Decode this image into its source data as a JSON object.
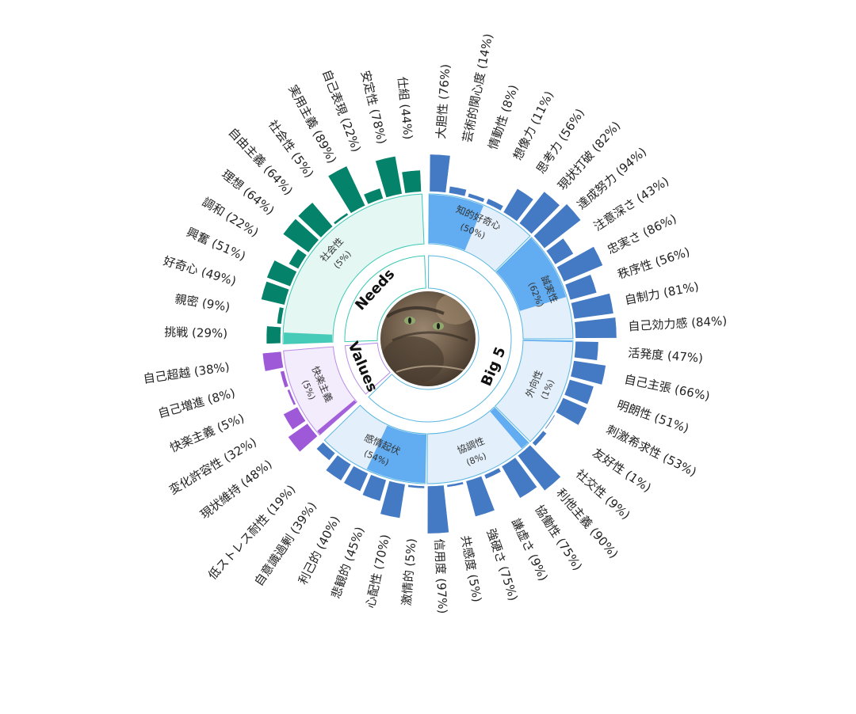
{
  "colors": {
    "big5": "#4479c4",
    "big5_light": "#e3f0fb",
    "big5_mid": "#5ba8f0",
    "big5_stroke": "#58b5e0",
    "needs": "#05826a",
    "needs_light": "#e4f7f2",
    "needs_mid": "#3cc8b4",
    "needs_stroke": "#3cc8b4",
    "values": "#9e59d9",
    "values_light": "#f3ecfc",
    "values_stroke": "#b98be6",
    "avatar_bg": "#7d6a55"
  },
  "chart_data": {
    "type": "sunburst",
    "title": "",
    "center_image": "cat-avatar",
    "groups": [
      {
        "name": "Big 5",
        "key": "big5",
        "categories": [
          {
            "name": "知的好奇心",
            "value": 50,
            "facets": [
              {
                "name": "大胆性",
                "value": 76
              },
              {
                "name": "芸術的関心度",
                "value": 14
              },
              {
                "name": "情動性",
                "value": 8
              },
              {
                "name": "想像力",
                "value": 11
              },
              {
                "name": "思考力",
                "value": 56
              },
              {
                "name": "現状打破",
                "value": 82
              }
            ]
          },
          {
            "name": "誠実性",
            "value": 62,
            "facets": [
              {
                "name": "達成努力",
                "value": 94
              },
              {
                "name": "注意深さ",
                "value": 43
              },
              {
                "name": "忠実さ",
                "value": 86
              },
              {
                "name": "秩序性",
                "value": 56
              },
              {
                "name": "自制力",
                "value": 81
              },
              {
                "name": "自己効力感",
                "value": 84
              }
            ]
          },
          {
            "name": "外向性",
            "value": 1,
            "facets": [
              {
                "name": "活発度",
                "value": 47
              },
              {
                "name": "自己主張",
                "value": 66
              },
              {
                "name": "明朗性",
                "value": 51
              },
              {
                "name": "刺激希求性",
                "value": 53
              },
              {
                "name": "友好性",
                "value": 1
              },
              {
                "name": "社交性",
                "value": 9
              }
            ]
          },
          {
            "name": "協調性",
            "value": 8,
            "facets": [
              {
                "name": "利他主義",
                "value": 90
              },
              {
                "name": "協働性",
                "value": 75
              },
              {
                "name": "謙虚さ",
                "value": 9
              },
              {
                "name": "強硬さ",
                "value": 75
              },
              {
                "name": "共感度",
                "value": 5
              },
              {
                "name": "信用度",
                "value": 97
              }
            ]
          },
          {
            "name": "感情起伏",
            "value": 54,
            "facets": [
              {
                "name": "激情的",
                "value": 5
              },
              {
                "name": "心配性",
                "value": 70
              },
              {
                "name": "悲観的",
                "value": 45
              },
              {
                "name": "利己的",
                "value": 40
              },
              {
                "name": "自意識過剰",
                "value": 39
              },
              {
                "name": "低ストレス耐性",
                "value": 19
              }
            ]
          }
        ]
      },
      {
        "name": "Values",
        "key": "values",
        "categories": [
          {
            "name": "快楽主義",
            "value": 5,
            "facets": [
              {
                "name": "現状維持",
                "value": 48
              },
              {
                "name": "変化許容性",
                "value": 32
              },
              {
                "name": "快楽主義",
                "value": 5
              },
              {
                "name": "自己増進",
                "value": 8
              },
              {
                "name": "自己超越",
                "value": 38
              }
            ]
          }
        ]
      },
      {
        "name": "Needs",
        "key": "needs",
        "categories": [
          {
            "name": "社会性",
            "value": 5,
            "facets": [
              {
                "name": "挑戦",
                "value": 29
              },
              {
                "name": "親密",
                "value": 9
              },
              {
                "name": "好奇心",
                "value": 49
              },
              {
                "name": "興奮",
                "value": 51
              },
              {
                "name": "調和",
                "value": 22
              },
              {
                "name": "理想",
                "value": 64
              },
              {
                "name": "自由主義",
                "value": 64
              },
              {
                "name": "社会性",
                "value": 5
              },
              {
                "name": "実用主義",
                "value": 89
              },
              {
                "name": "自己表現",
                "value": 22
              },
              {
                "name": "安定性",
                "value": 78
              },
              {
                "name": "仕組",
                "value": 44
              }
            ]
          }
        ]
      }
    ]
  }
}
